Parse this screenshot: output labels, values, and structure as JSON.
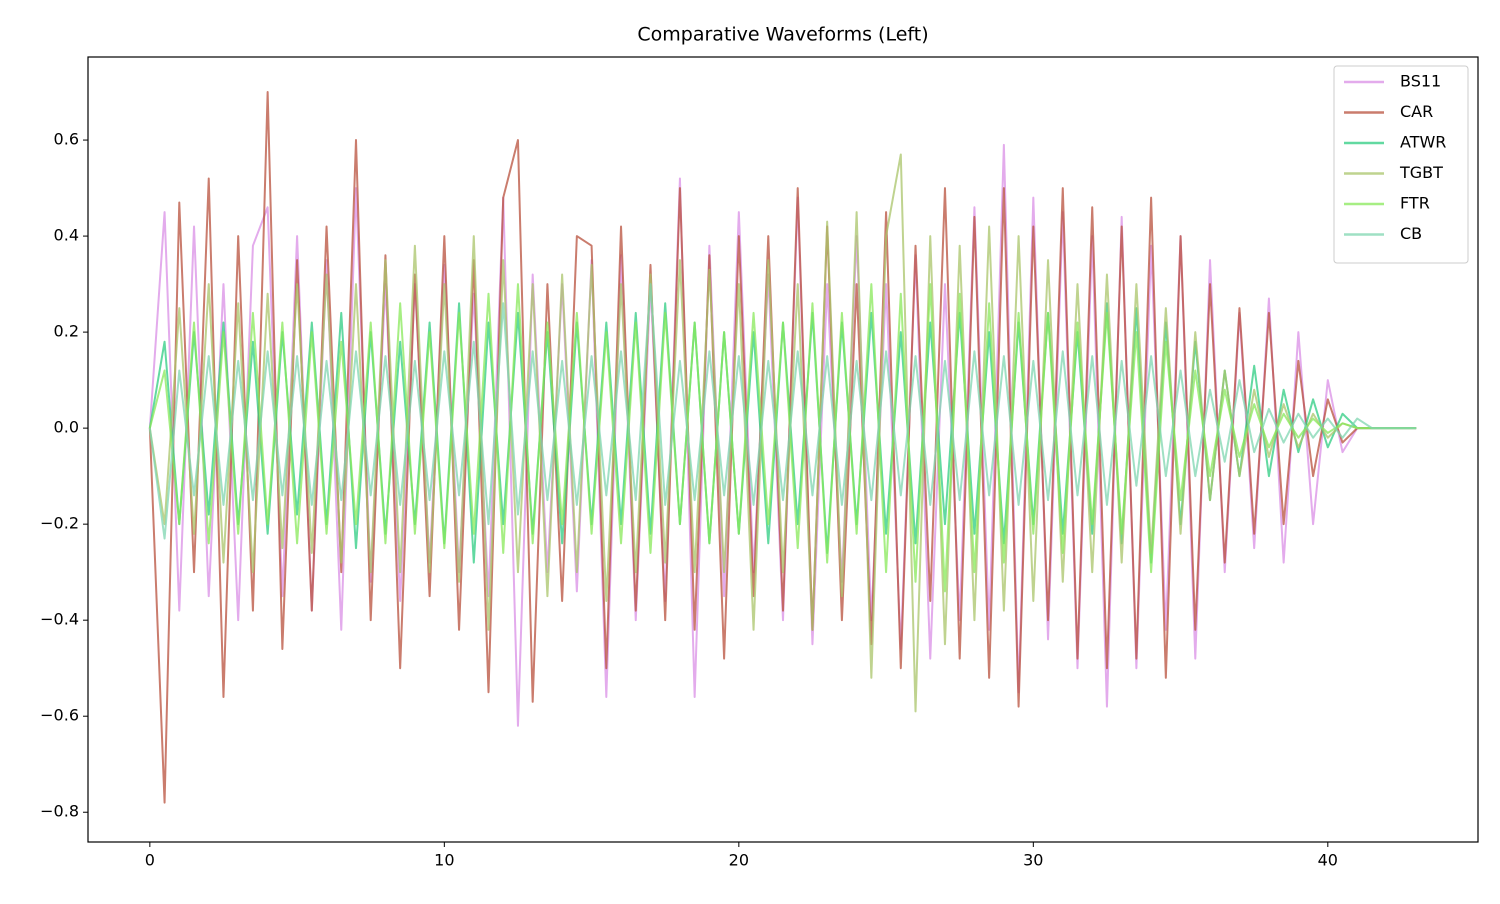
{
  "chart_data": {
    "type": "line",
    "title": "Comparative Waveforms (Left)",
    "x": [
      0,
      0.5,
      1,
      1.5,
      2,
      2.5,
      3,
      3.5,
      4,
      4.5,
      5,
      5.5,
      6,
      6.5,
      7,
      7.5,
      8,
      8.5,
      9,
      9.5,
      10,
      10.5,
      11,
      11.5,
      12,
      12.5,
      13,
      13.5,
      14,
      14.5,
      15,
      15.5,
      16,
      16.5,
      17,
      17.5,
      18,
      18.5,
      19,
      19.5,
      20,
      20.5,
      21,
      21.5,
      22,
      22.5,
      23,
      23.5,
      24,
      24.5,
      25,
      25.5,
      26,
      26.5,
      27,
      27.5,
      28,
      28.5,
      29,
      29.5,
      30,
      30.5,
      31,
      31.5,
      32,
      32.5,
      33,
      33.5,
      34,
      34.5,
      35,
      35.5,
      36,
      36.5,
      37,
      37.5,
      38,
      38.5,
      39,
      39.5,
      40,
      40.5,
      41,
      41.5,
      42,
      42.5,
      43
    ],
    "series": [
      {
        "name": "BS11",
        "color": "#da8fe6",
        "values": [
          0,
          0.45,
          -0.38,
          0.42,
          -0.35,
          0.3,
          -0.4,
          0.38,
          0.46,
          -0.35,
          0.4,
          -0.38,
          0.35,
          -0.42,
          0.5,
          -0.32,
          0.3,
          -0.36,
          0.3,
          -0.28,
          0.34,
          -0.3,
          0.28,
          -0.35,
          0.48,
          -0.62,
          0.32,
          -0.3,
          0.3,
          -0.34,
          0.35,
          -0.56,
          0.36,
          -0.4,
          0.3,
          -0.36,
          0.52,
          -0.56,
          0.38,
          -0.35,
          0.45,
          -0.3,
          0.32,
          -0.4,
          0.48,
          -0.45,
          0.3,
          -0.32,
          0.4,
          -0.4,
          0.3,
          -0.46,
          0.36,
          -0.48,
          0.3,
          -0.4,
          0.46,
          -0.42,
          0.59,
          -0.55,
          0.48,
          -0.44,
          0.45,
          -0.5,
          0.4,
          -0.58,
          0.44,
          -0.5,
          0.38,
          -0.42,
          0.4,
          -0.48,
          0.35,
          -0.3,
          0.24,
          -0.25,
          0.27,
          -0.28,
          0.2,
          -0.2,
          0.1,
          -0.05,
          0,
          0,
          0,
          0,
          0
        ]
      },
      {
        "name": "CAR",
        "color": "#b8503c",
        "values": [
          0,
          -0.78,
          0.47,
          -0.3,
          0.52,
          -0.56,
          0.4,
          -0.38,
          0.7,
          -0.46,
          0.35,
          -0.38,
          0.42,
          -0.3,
          0.6,
          -0.4,
          0.36,
          -0.5,
          0.32,
          -0.35,
          0.4,
          -0.42,
          0.35,
          -0.55,
          0.48,
          0.6,
          -0.57,
          0.3,
          -0.36,
          0.4,
          0.38,
          -0.5,
          0.42,
          -0.38,
          0.34,
          -0.4,
          0.5,
          -0.42,
          0.36,
          -0.48,
          0.4,
          -0.35,
          0.4,
          -0.38,
          0.5,
          -0.42,
          0.42,
          -0.4,
          0.3,
          -0.45,
          0.45,
          -0.5,
          0.38,
          -0.36,
          0.5,
          -0.48,
          0.44,
          -0.52,
          0.5,
          -0.58,
          0.42,
          -0.4,
          0.5,
          -0.48,
          0.46,
          -0.5,
          0.42,
          -0.48,
          0.48,
          -0.52,
          0.4,
          -0.42,
          0.3,
          -0.28,
          0.25,
          -0.22,
          0.24,
          -0.2,
          0.14,
          -0.1,
          0.06,
          -0.03,
          0,
          0,
          0,
          0,
          0
        ]
      },
      {
        "name": "ATWR",
        "color": "#2ecc82",
        "values": [
          0,
          0.18,
          -0.2,
          0.2,
          -0.18,
          0.22,
          -0.2,
          0.18,
          -0.22,
          0.2,
          -0.18,
          0.22,
          -0.2,
          0.24,
          -0.25,
          0.2,
          -0.22,
          0.18,
          -0.2,
          0.22,
          -0.24,
          0.26,
          -0.28,
          0.22,
          -0.2,
          0.24,
          -0.22,
          0.2,
          -0.24,
          0.22,
          -0.2,
          0.22,
          -0.2,
          0.24,
          -0.22,
          0.26,
          -0.2,
          0.22,
          -0.24,
          0.2,
          -0.22,
          0.2,
          -0.24,
          0.22,
          -0.2,
          0.24,
          -0.26,
          0.22,
          -0.2,
          0.24,
          -0.22,
          0.2,
          -0.24,
          0.22,
          -0.2,
          0.24,
          -0.22,
          0.2,
          -0.24,
          0.22,
          -0.2,
          0.24,
          -0.22,
          0.2,
          -0.22,
          0.26,
          -0.24,
          0.25,
          -0.28,
          0.22,
          -0.2,
          0.18,
          -0.15,
          0.12,
          -0.1,
          0.13,
          -0.1,
          0.08,
          -0.05,
          0.06,
          -0.04,
          0.03,
          0,
          0,
          0,
          0,
          0
        ]
      },
      {
        "name": "TGBT",
        "color": "#a9c46a",
        "values": [
          0,
          -0.2,
          0.25,
          -0.22,
          0.3,
          -0.28,
          0.26,
          -0.3,
          0.28,
          -0.25,
          0.3,
          -0.26,
          0.32,
          -0.28,
          0.3,
          -0.3,
          0.35,
          -0.3,
          0.38,
          -0.3,
          0.3,
          -0.32,
          0.4,
          -0.42,
          0.35,
          -0.3,
          0.3,
          -0.35,
          0.32,
          -0.3,
          0.34,
          -0.36,
          0.3,
          -0.3,
          0.32,
          -0.28,
          0.35,
          -0.3,
          0.33,
          -0.3,
          0.3,
          -0.42,
          0.35,
          -0.3,
          0.3,
          -0.42,
          0.43,
          -0.35,
          0.45,
          -0.52,
          0.4,
          0.57,
          -0.59,
          0.4,
          -0.45,
          0.38,
          -0.4,
          0.42,
          -0.38,
          0.4,
          -0.36,
          0.35,
          -0.32,
          0.3,
          -0.3,
          0.32,
          -0.28,
          0.3,
          -0.26,
          0.25,
          -0.22,
          0.2,
          -0.15,
          0.12,
          -0.1,
          0.08,
          -0.06,
          0.05,
          -0.04,
          0.03,
          -0.02,
          0.01,
          0,
          0,
          0,
          0,
          0
        ]
      },
      {
        "name": "FTR",
        "color": "#88e85a",
        "values": [
          0,
          0.12,
          -0.2,
          0.22,
          -0.24,
          0.2,
          -0.22,
          0.24,
          -0.2,
          0.22,
          -0.24,
          0.2,
          -0.22,
          0.18,
          -0.2,
          0.22,
          -0.24,
          0.26,
          -0.22,
          0.2,
          -0.25,
          0.24,
          -0.22,
          0.28,
          -0.26,
          0.3,
          -0.24,
          0.22,
          -0.2,
          0.24,
          -0.22,
          0.2,
          -0.24,
          0.22,
          -0.26,
          0.24,
          -0.2,
          0.22,
          -0.24,
          0.2,
          -0.22,
          0.24,
          -0.2,
          0.22,
          -0.25,
          0.26,
          -0.28,
          0.24,
          -0.22,
          0.3,
          -0.3,
          0.28,
          -0.32,
          0.3,
          -0.34,
          0.28,
          -0.3,
          0.26,
          -0.28,
          0.24,
          -0.22,
          0.24,
          -0.26,
          0.22,
          -0.2,
          0.24,
          -0.22,
          0.2,
          -0.3,
          0.18,
          -0.15,
          0.12,
          -0.1,
          0.08,
          -0.06,
          0.05,
          -0.04,
          0.03,
          -0.02,
          0.02,
          -0.01,
          0.01,
          0,
          0,
          0,
          0,
          0
        ]
      },
      {
        "name": "CB",
        "color": "#7fd6b0",
        "values": [
          0,
          -0.23,
          0.12,
          -0.14,
          0.15,
          -0.16,
          0.14,
          -0.15,
          0.16,
          -0.14,
          0.15,
          -0.16,
          0.14,
          -0.15,
          0.16,
          -0.14,
          0.15,
          -0.16,
          0.14,
          -0.15,
          0.16,
          -0.14,
          0.18,
          -0.2,
          0.26,
          -0.18,
          0.16,
          -0.15,
          0.14,
          -0.16,
          0.15,
          -0.14,
          0.16,
          -0.15,
          0.3,
          -0.16,
          0.14,
          -0.15,
          0.16,
          -0.14,
          0.15,
          -0.16,
          0.14,
          -0.15,
          0.16,
          -0.14,
          0.15,
          -0.16,
          0.14,
          -0.15,
          0.16,
          -0.14,
          0.15,
          -0.16,
          0.14,
          -0.15,
          0.16,
          -0.14,
          0.15,
          -0.16,
          0.14,
          -0.15,
          0.16,
          -0.14,
          0.15,
          -0.16,
          0.14,
          -0.12,
          0.15,
          -0.1,
          0.12,
          -0.1,
          0.08,
          -0.07,
          0.1,
          -0.05,
          0.04,
          -0.03,
          0.03,
          -0.02,
          0.02,
          -0.02,
          0.02,
          0,
          0,
          0,
          0
        ]
      }
    ],
    "xlim": [
      -2.1,
      45.1
    ],
    "xticks": [
      0,
      10,
      20,
      30,
      40
    ],
    "ylim": [
      -0.862,
      0.773
    ],
    "yticks": [
      {
        "value": -0.8,
        "label": "−0.8"
      },
      {
        "value": -0.6,
        "label": "−0.6"
      },
      {
        "value": -0.4,
        "label": "−0.4"
      },
      {
        "value": -0.2,
        "label": "−0.2"
      },
      {
        "value": 0,
        "label": "0.0"
      },
      0.2,
      0.4,
      0.6
    ],
    "legend": "upper right"
  }
}
